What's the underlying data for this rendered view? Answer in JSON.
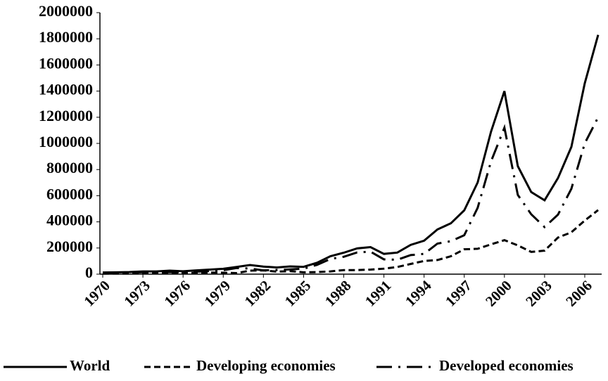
{
  "chart_data": {
    "type": "line",
    "x": [
      1970,
      1971,
      1972,
      1973,
      1974,
      1975,
      1976,
      1977,
      1978,
      1979,
      1980,
      1981,
      1982,
      1983,
      1984,
      1985,
      1986,
      1987,
      1988,
      1989,
      1990,
      1991,
      1992,
      1993,
      1994,
      1995,
      1996,
      1997,
      1998,
      1999,
      2000,
      2001,
      2002,
      2003,
      2004,
      2005,
      2006,
      2007
    ],
    "xlim": [
      1970,
      2007
    ],
    "xticks": [
      1970,
      1973,
      1976,
      1979,
      1982,
      1985,
      1988,
      1991,
      1994,
      1997,
      2000,
      2003,
      2006
    ],
    "ylim": [
      0,
      2000000
    ],
    "yticks": [
      0,
      200000,
      400000,
      600000,
      800000,
      1000000,
      1200000,
      1400000,
      1600000,
      1800000,
      2000000
    ],
    "grid": false,
    "legend": "bottom",
    "series": [
      {
        "name": "World",
        "color": "#000000",
        "line_style": "solid",
        "values": [
          13000,
          14000,
          16000,
          21000,
          21000,
          27000,
          22000,
          29000,
          35000,
          41000,
          55000,
          70000,
          58000,
          51000,
          59000,
          56000,
          87000,
          137000,
          164000,
          197000,
          207000,
          155000,
          165000,
          224000,
          256000,
          342000,
          389000,
          488000,
          701000,
          1090000,
          1400000,
          826000,
          628000,
          565000,
          735000,
          973000,
          1460000,
          1830000
        ]
      },
      {
        "name": "Developing economies",
        "color": "#000000",
        "line_style": "dashed",
        "values": [
          4000,
          5000,
          5000,
          6000,
          7000,
          11000,
          8000,
          10000,
          12000,
          11000,
          8000,
          27000,
          29000,
          19000,
          23000,
          14000,
          16000,
          21000,
          31000,
          31000,
          35000,
          42000,
          55000,
          78000,
          101000,
          108000,
          137000,
          190000,
          194000,
          228000,
          260000,
          220000,
          170000,
          180000,
          280000,
          320000,
          410000,
          490000
        ]
      },
      {
        "name": "Developed economies",
        "color": "#000000",
        "line_style": "dashdot",
        "values": [
          9000,
          9000,
          11000,
          15000,
          14000,
          16000,
          14000,
          19000,
          23000,
          30000,
          47000,
          43000,
          29000,
          32000,
          36000,
          42000,
          71000,
          116000,
          133000,
          166000,
          172000,
          113000,
          110000,
          146000,
          155000,
          234000,
          252000,
          298000,
          507000,
          862000,
          1120000,
          606000,
          458000,
          360000,
          455000,
          653000,
          1000000,
          1200000
        ]
      }
    ]
  }
}
